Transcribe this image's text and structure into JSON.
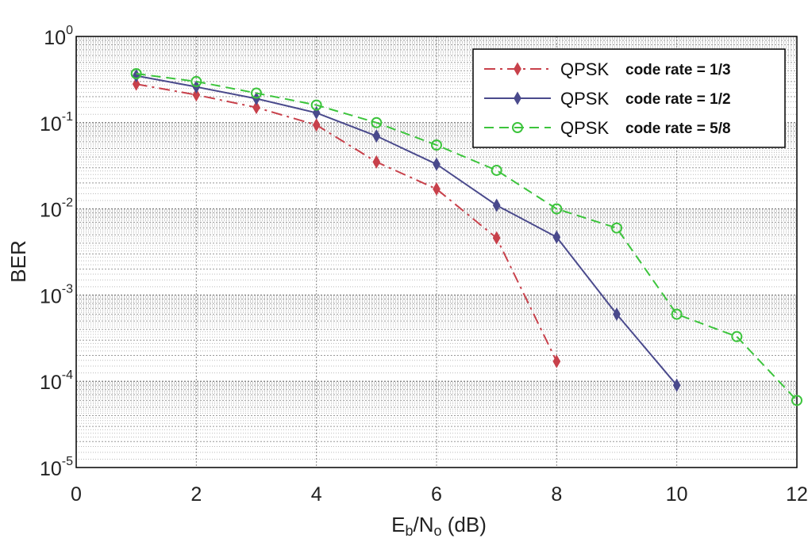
{
  "chart_data": {
    "type": "line",
    "title": "",
    "xlabel": "Eb/No (dB)",
    "xlabel_parts": {
      "main1": "E",
      "sub1": "b",
      "main2": "/N",
      "sub2": "o",
      "rest": " (dB)"
    },
    "ylabel": "BER",
    "y_scale": "log",
    "xlim": [
      0,
      12
    ],
    "ylim": [
      1e-05,
      1
    ],
    "x_ticks": [
      0,
      2,
      4,
      6,
      8,
      10,
      12
    ],
    "y_ticks": [
      {
        "value": 1,
        "base": "10",
        "exp": "0"
      },
      {
        "value": 0.1,
        "base": "10",
        "exp": "-1"
      },
      {
        "value": 0.01,
        "base": "10",
        "exp": "-2"
      },
      {
        "value": 0.001,
        "base": "10",
        "exp": "-3"
      },
      {
        "value": 0.0001,
        "base": "10",
        "exp": "-4"
      },
      {
        "value": 1e-05,
        "base": "10",
        "exp": "-5"
      }
    ],
    "grid": true,
    "legend_position": "top-right",
    "series": [
      {
        "name": "QPSK code rate = 1/3",
        "legend_mod": "QPSK",
        "legend_rate": "code rate = 1/3",
        "color": "#c8414b",
        "dash": "14,6,3,6",
        "marker": "diamond",
        "x": [
          1,
          2,
          3,
          4,
          5,
          6,
          7,
          8
        ],
        "y": [
          0.28,
          0.21,
          0.15,
          0.094,
          0.035,
          0.017,
          0.0046,
          0.00017
        ]
      },
      {
        "name": "QPSK code rate = 1/2",
        "legend_mod": "QPSK",
        "legend_rate": "code rate = 1/2",
        "color": "#4a4a8c",
        "dash": "",
        "marker": "diamond",
        "x": [
          1,
          2,
          3,
          4,
          5,
          6,
          7,
          8,
          9,
          10
        ],
        "y": [
          0.35,
          0.26,
          0.19,
          0.13,
          0.07,
          0.033,
          0.011,
          0.0047,
          0.0006,
          9e-05
        ]
      },
      {
        "name": "QPSK code rate = 5/8",
        "legend_mod": "QPSK",
        "legend_rate": "code rate = 5/8",
        "color": "#3cc43c",
        "dash": "12,7",
        "marker": "circle",
        "x": [
          1,
          2,
          3,
          4,
          5,
          6,
          7,
          8,
          9,
          10,
          11,
          12
        ],
        "y": [
          0.37,
          0.3,
          0.22,
          0.16,
          0.1,
          0.055,
          0.028,
          0.01,
          0.006,
          0.0006,
          0.00033,
          6e-05
        ]
      }
    ]
  }
}
